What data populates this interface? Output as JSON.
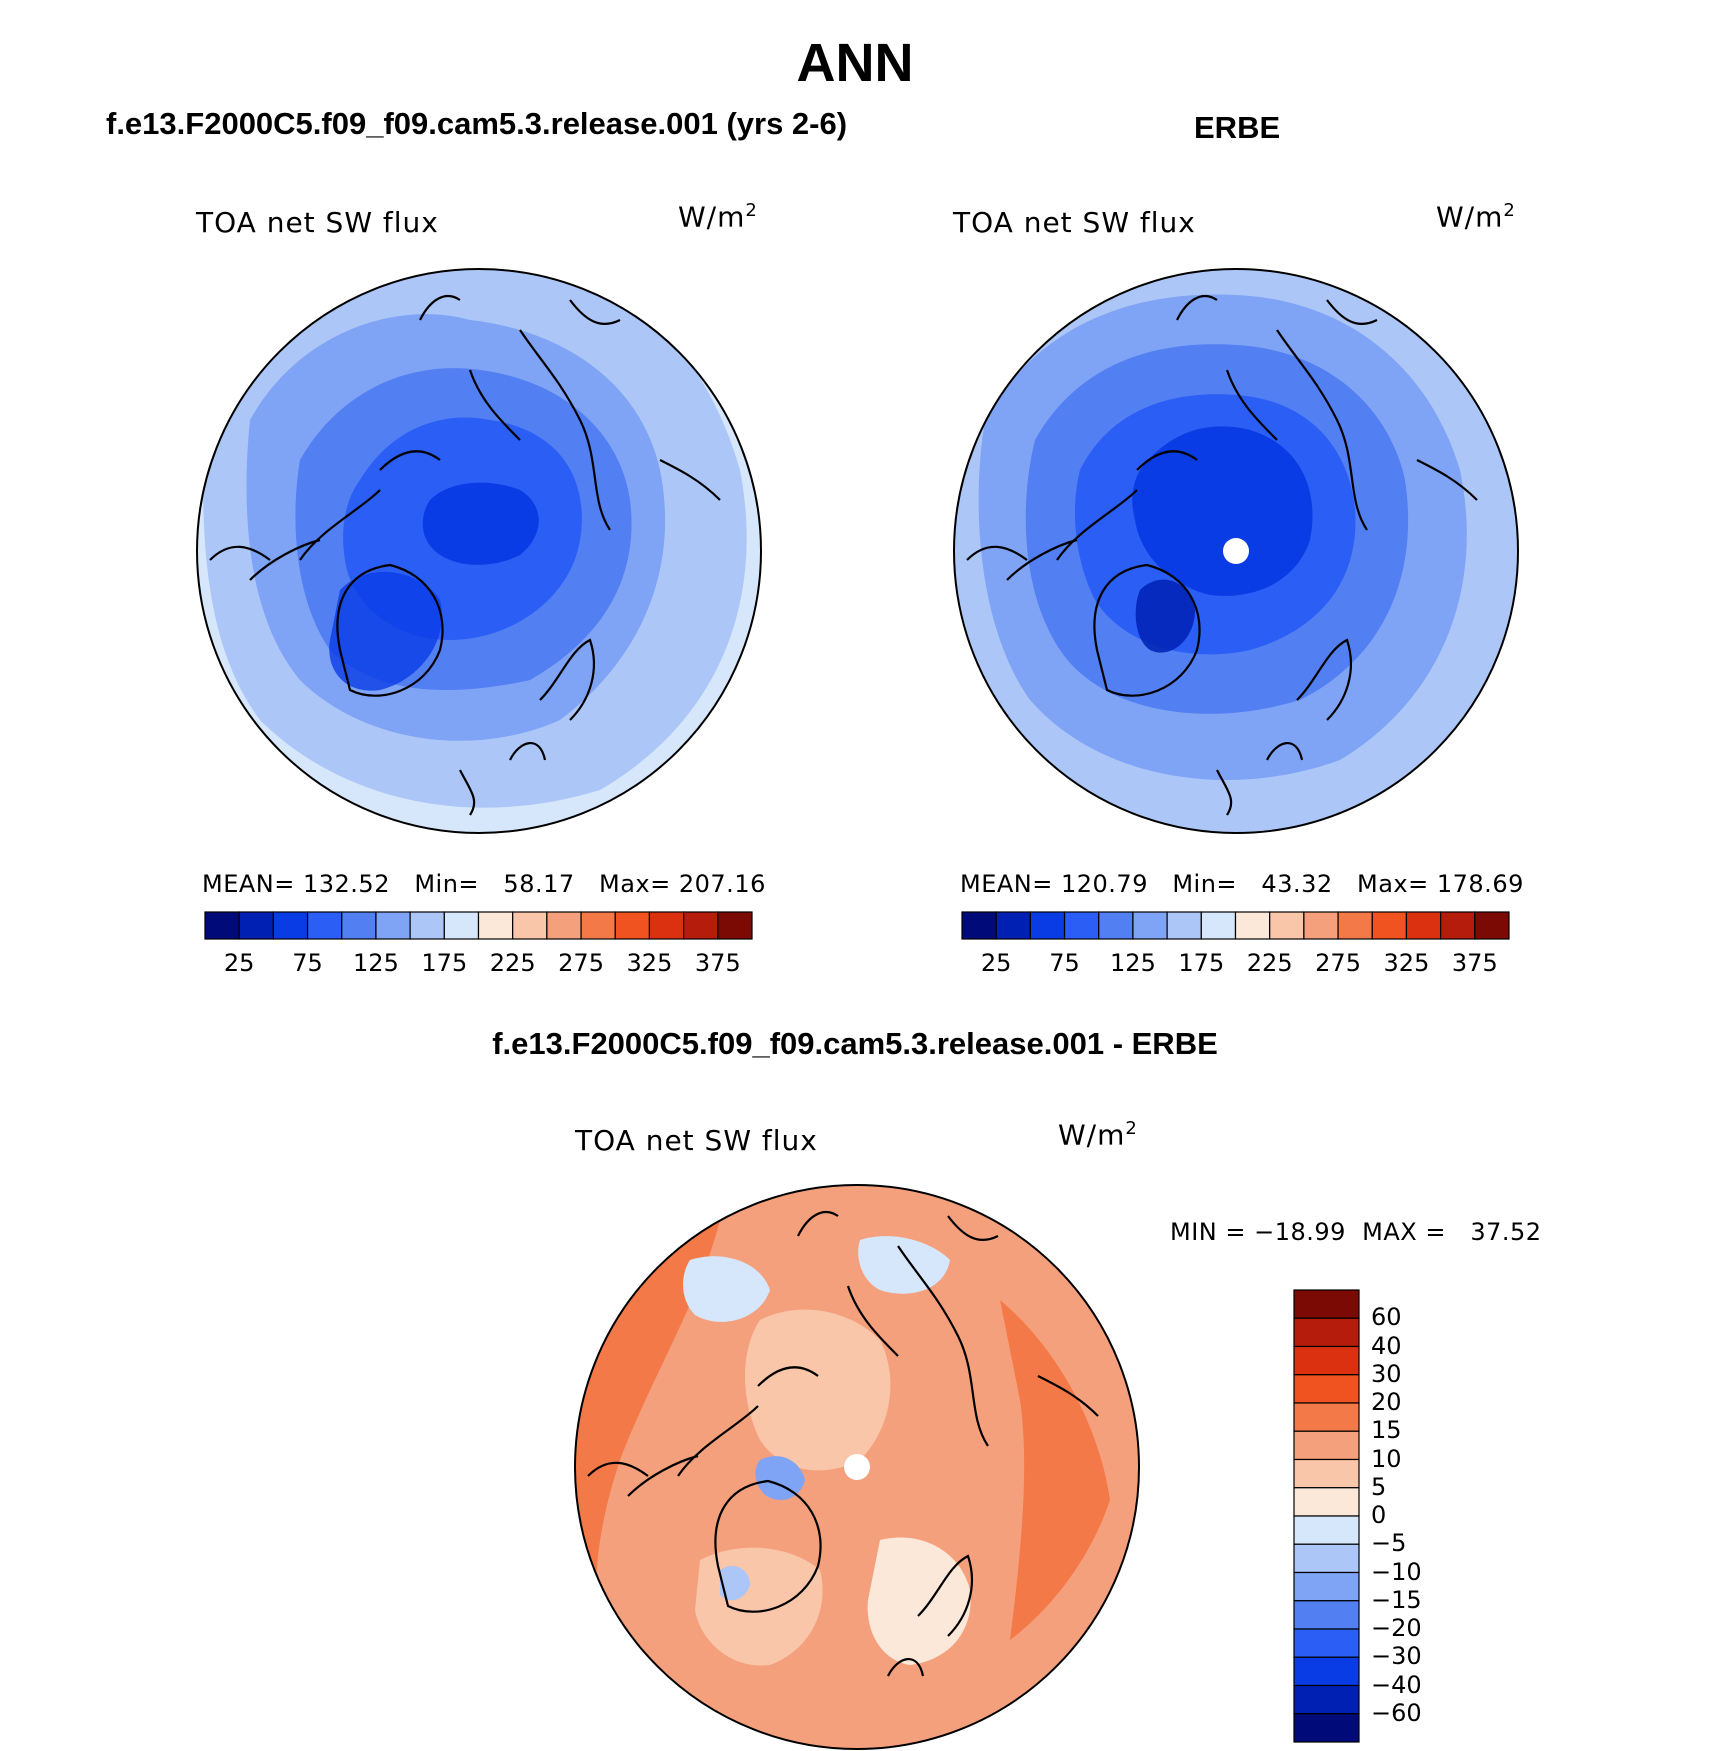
{
  "figure": {
    "season": "ANN",
    "panels": [
      {
        "id": "model",
        "title": "f.e13.F2000C5.f09_f09.cam5.3.release.001 (yrs 2-6)",
        "variable": "TOA net SW flux",
        "units_base": "W/m",
        "units_sup": "2",
        "stats_line": "MEAN= 132.52   Min=   58.17   Max= 207.16",
        "mean": 132.52,
        "min": 58.17,
        "max": 207.16,
        "colorbar_ticks": [
          "25",
          "75",
          "125",
          "175",
          "225",
          "275",
          "325",
          "375"
        ]
      },
      {
        "id": "obs",
        "title": "ERBE",
        "variable": "TOA net SW flux",
        "units_base": "W/m",
        "units_sup": "2",
        "stats_line": "MEAN= 120.79   Min=   43.32   Max= 178.69",
        "mean": 120.79,
        "min": 43.32,
        "max": 178.69,
        "colorbar_ticks": [
          "25",
          "75",
          "125",
          "175",
          "225",
          "275",
          "325",
          "375"
        ]
      },
      {
        "id": "diff",
        "title": "f.e13.F2000C5.f09_f09.cam5.3.release.001 - ERBE",
        "variable": "TOA net SW flux",
        "units_base": "W/m",
        "units_sup": "2",
        "stats_line": "MIN = −18.99  MAX =   37.52",
        "min": -18.99,
        "max": 37.52,
        "colorbar_ticks": [
          "60",
          "40",
          "30",
          "20",
          "15",
          "10",
          "5",
          "0",
          "−5",
          "−10",
          "−15",
          "−20",
          "−30",
          "−40",
          "−60"
        ]
      }
    ],
    "colors": {
      "abs_scale": [
        "#000a78",
        "#0020b4",
        "#0a3ce6",
        "#2a5ef4",
        "#527ff2",
        "#7fa3f5",
        "#adc6f8",
        "#d6e7fb",
        "#fbe8d9",
        "#f9c6aa",
        "#f5a07c",
        "#f47949",
        "#f0531f",
        "#dc3110",
        "#b51c0b",
        "#7c0a04"
      ],
      "diff_scale": [
        "#000a78",
        "#0020b4",
        "#0a3ce6",
        "#2a5ef4",
        "#527ff2",
        "#7fa3f5",
        "#adc6f8",
        "#d6e7fb",
        "#fbe8d9",
        "#f9c6aa",
        "#f5a07c",
        "#f47949",
        "#f0531f",
        "#dc3110",
        "#b51c0b",
        "#7c0a04"
      ]
    }
  }
}
